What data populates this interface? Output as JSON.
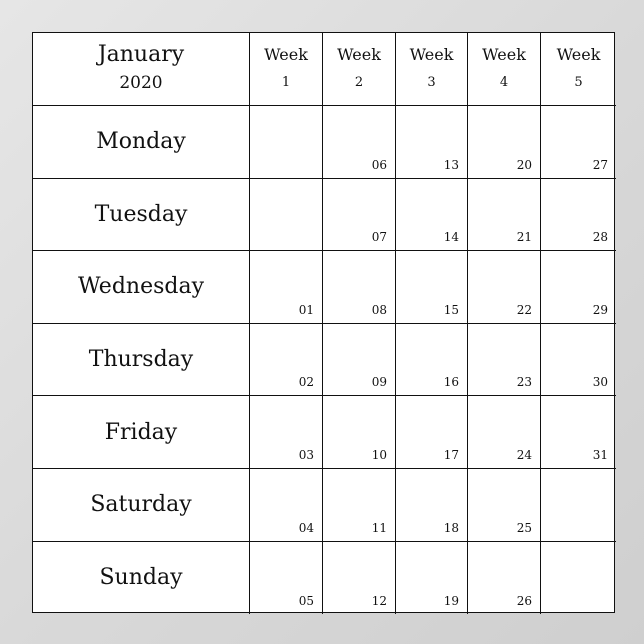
{
  "header": {
    "month": "January",
    "year": "2020"
  },
  "weeks": [
    {
      "label": "Week",
      "num": "1"
    },
    {
      "label": "Week",
      "num": "2"
    },
    {
      "label": "Week",
      "num": "3"
    },
    {
      "label": "Week",
      "num": "4"
    },
    {
      "label": "Week",
      "num": "5"
    }
  ],
  "rows": [
    {
      "day": "Monday",
      "dates": [
        "",
        "06",
        "13",
        "20",
        "27"
      ]
    },
    {
      "day": "Tuesday",
      "dates": [
        "",
        "07",
        "14",
        "21",
        "28"
      ]
    },
    {
      "day": "Wednesday",
      "dates": [
        "01",
        "08",
        "15",
        "22",
        "29"
      ]
    },
    {
      "day": "Thursday",
      "dates": [
        "02",
        "09",
        "16",
        "23",
        "30"
      ]
    },
    {
      "day": "Friday",
      "dates": [
        "03",
        "10",
        "17",
        "24",
        "31"
      ]
    },
    {
      "day": "Saturday",
      "dates": [
        "04",
        "11",
        "18",
        "25",
        ""
      ]
    },
    {
      "day": "Sunday",
      "dates": [
        "05",
        "12",
        "19",
        "26",
        ""
      ]
    }
  ]
}
